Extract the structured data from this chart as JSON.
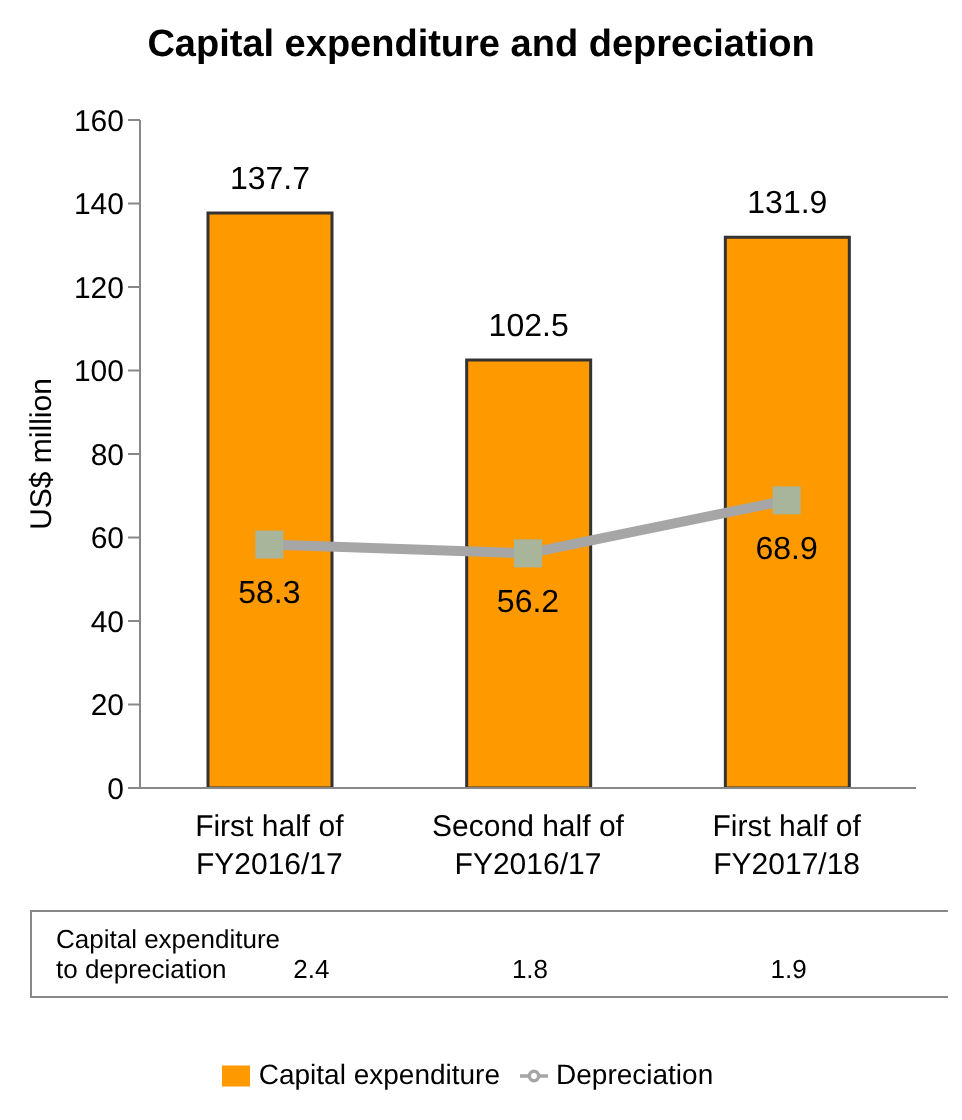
{
  "chart_data": {
    "type": "bar",
    "title": "Capital expenditure and depreciation",
    "ylabel": "US$ million",
    "categories": [
      "First half of\nFY2016/17",
      "Second half of\nFY2016/17",
      "First half of\nFY2017/18"
    ],
    "series": [
      {
        "name": "Capital expenditure",
        "color": "#ff9900",
        "values": [
          137.7,
          102.5,
          131.9
        ]
      },
      {
        "name": "Depreciation",
        "type": "line",
        "color": "#a6a6a6",
        "marker": "square",
        "values": [
          58.3,
          56.2,
          68.9
        ]
      }
    ],
    "ylim": [
      0,
      160
    ],
    "yticks": [
      0,
      20,
      40,
      60,
      80,
      100,
      120,
      140,
      160
    ],
    "grid": false,
    "data_labels": true,
    "legend": "bottom",
    "annotations": [
      "Capital expenditure\nto depreciation",
      "2.4",
      "1.8",
      "1.9"
    ]
  }
}
